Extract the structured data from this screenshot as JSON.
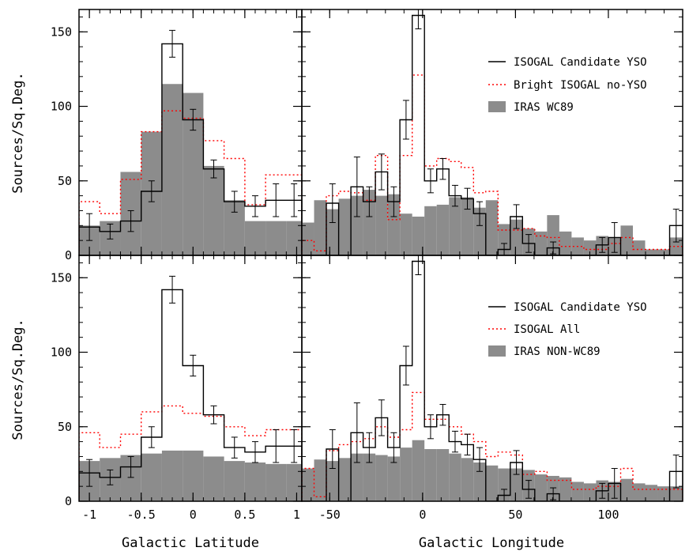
{
  "figure": {
    "ylabel": "Sources/Sq.Deg.",
    "xlabel_left": "Galactic Latitude",
    "xlabel_right": "Galactic Longitude"
  },
  "colors": {
    "yso": "#000000",
    "isogal_dotted": "#ff0000",
    "iras_fill": "#8c8c8c"
  },
  "chart_data": [
    {
      "type": "bar",
      "panel": "top-left",
      "xlabel": "",
      "ylabel": "Sources/Sq.Deg.",
      "xlim": [
        -1.1,
        1.05
      ],
      "ylim": [
        0,
        165
      ],
      "xticks": [
        -1,
        -0.5,
        0,
        0.5,
        1
      ],
      "yticks": [
        0,
        50,
        100,
        150
      ],
      "bin_edges": [
        -1.1,
        -0.9,
        -0.7,
        -0.5,
        -0.3,
        -0.1,
        0.1,
        0.3,
        0.5,
        0.7,
        0.9,
        1.05
      ],
      "series": [
        {
          "name": "IRAS WC89",
          "style": "filled",
          "values": [
            20,
            23,
            56,
            83,
            115,
            109,
            60,
            37,
            23,
            23,
            23
          ]
        },
        {
          "name": "Bright ISOGAL no-YSO",
          "style": "dotted",
          "values": [
            36,
            28,
            51,
            83,
            97,
            92,
            77,
            65,
            34,
            54,
            54
          ]
        },
        {
          "name": "ISOGAL Candidate YSO",
          "style": "step",
          "values": [
            19,
            16,
            23,
            43,
            142,
            91,
            58,
            36,
            33,
            37,
            37
          ],
          "errors": [
            9,
            5,
            7,
            7,
            9,
            7,
            6,
            7,
            7,
            11,
            11
          ]
        }
      ]
    },
    {
      "type": "bar",
      "panel": "top-right",
      "xlabel": "",
      "ylabel": "",
      "xlim": [
        -65,
        140
      ],
      "ylim": [
        0,
        165
      ],
      "xticks": [
        -50,
        0,
        50,
        100
      ],
      "yticks": [
        0,
        50,
        100,
        150
      ],
      "bin_edges": [
        -65,
        -58.4,
        -51.8,
        -45.2,
        -38.6,
        -32,
        -25.4,
        -18.8,
        -12.2,
        -5.6,
        1,
        7.6,
        14.2,
        20.8,
        27.4,
        34,
        40.6,
        47.2,
        53.8,
        60.4,
        67,
        73.6,
        80.2,
        86.8,
        93.4,
        100,
        106.6,
        113.2,
        119.8,
        126.4,
        133,
        140
      ],
      "series": [
        {
          "name": "IRAS WC89",
          "style": "filled",
          "values": [
            22,
            37,
            31,
            38,
            40,
            44,
            40,
            41,
            28,
            26,
            33,
            34,
            39,
            39,
            32,
            37,
            21,
            24,
            18,
            16,
            27,
            16,
            12,
            10,
            13,
            12,
            20,
            10,
            4,
            4,
            12
          ]
        },
        {
          "name": "Bright ISOGAL no-YSO",
          "style": "dotted",
          "values": [
            10,
            3,
            40,
            43,
            42,
            37,
            67,
            24,
            67,
            121,
            60,
            65,
            63,
            59,
            42,
            43,
            17,
            17,
            18,
            13,
            12,
            6,
            6,
            4,
            4,
            8,
            12,
            4,
            4,
            4,
            6
          ]
        },
        {
          "name": "ISOGAL Candidate YSO",
          "style": "step",
          "values": [
            0,
            0,
            35,
            0,
            46,
            36,
            56,
            36,
            91,
            161,
            50,
            58,
            40,
            38,
            28,
            0,
            4,
            26,
            8,
            0,
            5,
            0,
            0,
            0,
            7,
            12,
            0,
            0,
            0,
            0,
            20
          ],
          "errors": [
            0,
            0,
            13,
            0,
            20,
            10,
            12,
            10,
            13,
            9,
            8,
            7,
            7,
            7,
            8,
            0,
            4,
            8,
            6,
            0,
            4,
            0,
            0,
            0,
            5,
            10,
            0,
            0,
            0,
            0,
            11
          ]
        }
      ]
    },
    {
      "type": "bar",
      "panel": "bottom-left",
      "xlabel": "Galactic Latitude",
      "ylabel": "Sources/Sq.Deg.",
      "xlim": [
        -1.1,
        1.05
      ],
      "ylim": [
        0,
        165
      ],
      "xticks": [
        -1,
        -0.5,
        0,
        0.5,
        1
      ],
      "yticks": [
        0,
        50,
        100,
        150
      ],
      "bin_edges": [
        -1.1,
        -0.9,
        -0.7,
        -0.5,
        -0.3,
        -0.1,
        0.1,
        0.3,
        0.5,
        0.7,
        0.9,
        1.05
      ],
      "series": [
        {
          "name": "IRAS NON-WC89",
          "style": "filled",
          "values": [
            27,
            29,
            31,
            32,
            34,
            34,
            30,
            27,
            26,
            25,
            25
          ]
        },
        {
          "name": "ISOGAL All",
          "style": "dotted",
          "values": [
            46,
            36,
            45,
            60,
            64,
            59,
            57,
            50,
            44,
            48,
            48
          ]
        },
        {
          "name": "ISOGAL Candidate YSO",
          "style": "step",
          "values": [
            19,
            16,
            23,
            43,
            142,
            91,
            58,
            36,
            33,
            37,
            37
          ],
          "errors": [
            9,
            5,
            7,
            7,
            9,
            7,
            6,
            7,
            7,
            11,
            11
          ]
        }
      ]
    },
    {
      "type": "bar",
      "panel": "bottom-right",
      "xlabel": "Galactic Longitude",
      "ylabel": "",
      "xlim": [
        -65,
        140
      ],
      "ylim": [
        0,
        165
      ],
      "xticks": [
        -50,
        0,
        50,
        100
      ],
      "yticks": [
        0,
        50,
        100,
        150
      ],
      "bin_edges": [
        -65,
        -58.4,
        -51.8,
        -45.2,
        -38.6,
        -32,
        -25.4,
        -18.8,
        -12.2,
        -5.6,
        1,
        7.6,
        14.2,
        20.8,
        27.4,
        34,
        40.6,
        47.2,
        53.8,
        60.4,
        67,
        73.6,
        80.2,
        86.8,
        93.4,
        100,
        106.6,
        113.2,
        119.8,
        126.4,
        133,
        140
      ],
      "series": [
        {
          "name": "IRAS NON-WC89",
          "style": "filled",
          "values": [
            22,
            28,
            27,
            29,
            32,
            32,
            31,
            30,
            36,
            41,
            35,
            35,
            32,
            29,
            26,
            24,
            22,
            22,
            21,
            18,
            17,
            16,
            13,
            12,
            14,
            13,
            15,
            12,
            11,
            10,
            10
          ]
        },
        {
          "name": "ISOGAL All",
          "style": "dotted",
          "values": [
            22,
            3,
            34,
            38,
            40,
            42,
            50,
            43,
            48,
            73,
            55,
            55,
            50,
            45,
            40,
            30,
            33,
            31,
            18,
            20,
            14,
            14,
            8,
            8,
            10,
            10,
            22,
            8,
            8,
            8,
            8
          ]
        },
        {
          "name": "ISOGAL Candidate YSO",
          "style": "step",
          "values": [
            0,
            0,
            35,
            0,
            46,
            36,
            56,
            36,
            91,
            161,
            50,
            58,
            40,
            38,
            28,
            0,
            4,
            26,
            8,
            0,
            5,
            0,
            0,
            0,
            7,
            12,
            0,
            0,
            0,
            0,
            20
          ],
          "errors": [
            0,
            0,
            13,
            0,
            20,
            10,
            12,
            10,
            13,
            9,
            8,
            7,
            7,
            7,
            8,
            0,
            4,
            8,
            6,
            0,
            4,
            0,
            0,
            0,
            5,
            10,
            0,
            0,
            0,
            0,
            11
          ]
        }
      ]
    }
  ],
  "legends": {
    "top": {
      "placement": "top-right",
      "entries": [
        {
          "style": "step",
          "label": "ISOGAL Candidate YSO"
        },
        {
          "style": "dotted",
          "label": "Bright ISOGAL no-YSO"
        },
        {
          "style": "filled",
          "label": "IRAS WC89"
        }
      ]
    },
    "bottom": {
      "placement": "top-right",
      "entries": [
        {
          "style": "step",
          "label": "ISOGAL Candidate YSO"
        },
        {
          "style": "dotted",
          "label": "ISOGAL All"
        },
        {
          "style": "filled",
          "label": "IRAS NON-WC89"
        }
      ]
    }
  }
}
